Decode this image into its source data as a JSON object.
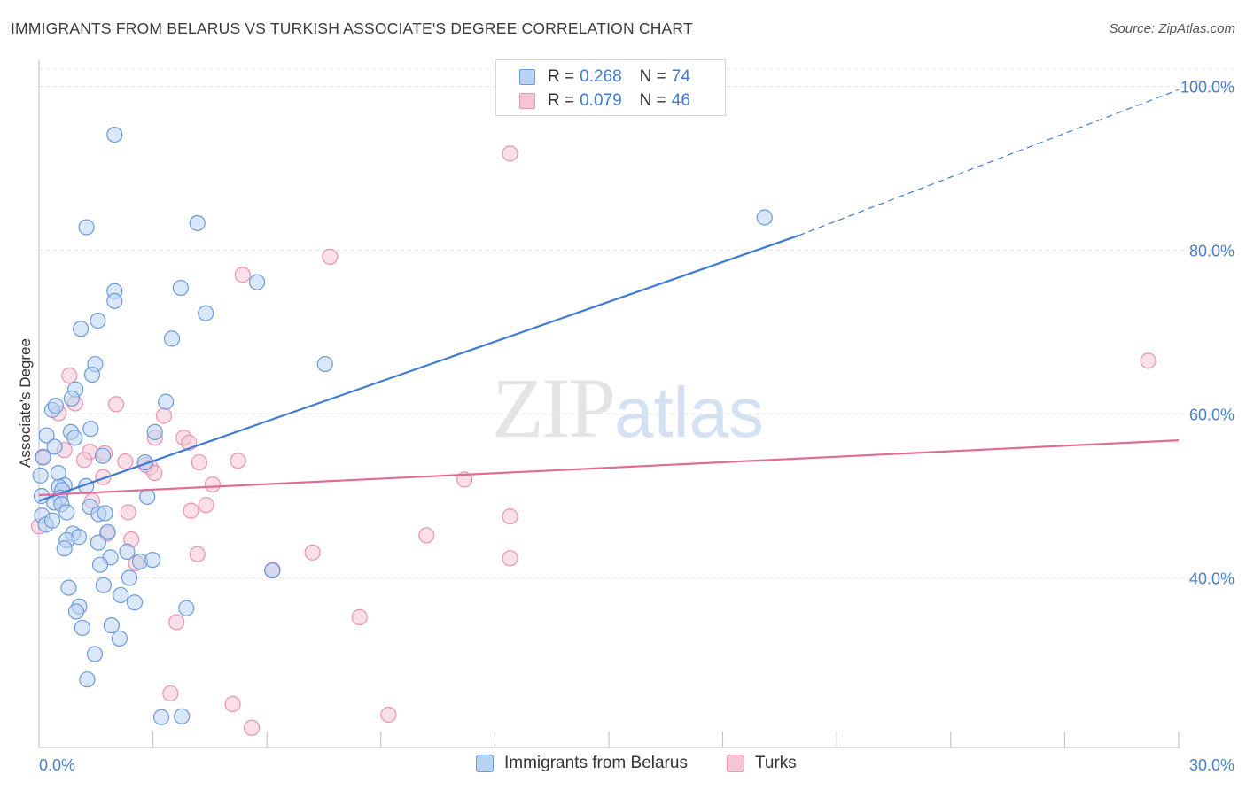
{
  "title": "IMMIGRANTS FROM BELARUS VS TURKISH ASSOCIATE'S DEGREE CORRELATION CHART",
  "source": "Source: ZipAtlas.com",
  "watermark": {
    "zip": "ZIP",
    "atlas": "atlas"
  },
  "colors": {
    "blue": "#3e7bd3",
    "blue_fill": "#b9d3f3",
    "pink": "#e06c96",
    "pink_fill": "#f6c5d5",
    "grid": "#e6e6e6"
  },
  "legend": {
    "rows": [
      {
        "r_label": "R =",
        "r_value": "0.268",
        "n_label": "N =",
        "n_value": "74"
      },
      {
        "r_label": "R =",
        "r_value": "0.079",
        "n_label": "N =",
        "n_value": "46"
      }
    ],
    "bottom": [
      "Immigrants from Belarus",
      "Turks"
    ]
  },
  "chart_data": {
    "type": "scatter",
    "title": "IMMIGRANTS FROM BELARUS VS TURKISH ASSOCIATE'S DEGREE CORRELATION CHART",
    "xlabel": "",
    "ylabel": "Associate's Degree",
    "xlim": [
      0,
      30
    ],
    "ylim": [
      20,
      102
    ],
    "x_tick_labels": [
      "0.0%",
      "30.0%"
    ],
    "y_ticks": [
      40,
      60,
      80,
      100
    ],
    "y_tick_labels": [
      "40.0%",
      "60.0%",
      "80.0%",
      "100.0%"
    ],
    "grid": true,
    "series": [
      {
        "name": "Immigrants from Belarus",
        "color": "#3e7bd3",
        "R": 0.268,
        "N": 74,
        "trend": {
          "x0": 0.0,
          "y0": 49.4,
          "x1": 20.0,
          "y1": 81.8,
          "dashed_to_x": 30.0,
          "dashed_to_y": 99.6
        },
        "points": [
          [
            1.99,
            94.1
          ],
          [
            1.25,
            82.8
          ],
          [
            4.17,
            83.3
          ],
          [
            19.1,
            84.0
          ],
          [
            1.99,
            75.0
          ],
          [
            1.99,
            73.8
          ],
          [
            3.73,
            75.4
          ],
          [
            5.74,
            76.1
          ],
          [
            1.55,
            71.4
          ],
          [
            1.1,
            70.4
          ],
          [
            4.39,
            72.3
          ],
          [
            3.5,
            69.2
          ],
          [
            1.48,
            66.1
          ],
          [
            1.4,
            64.8
          ],
          [
            7.53,
            66.1
          ],
          [
            0.96,
            63.0
          ],
          [
            0.86,
            61.9
          ],
          [
            0.35,
            60.5
          ],
          [
            0.44,
            61.0
          ],
          [
            3.34,
            61.5
          ],
          [
            1.36,
            58.2
          ],
          [
            0.84,
            57.8
          ],
          [
            0.94,
            57.1
          ],
          [
            3.05,
            57.8
          ],
          [
            0.2,
            57.4
          ],
          [
            0.41,
            56.0
          ],
          [
            1.68,
            54.9
          ],
          [
            0.11,
            54.7
          ],
          [
            2.79,
            54.1
          ],
          [
            0.51,
            52.8
          ],
          [
            0.04,
            52.5
          ],
          [
            0.67,
            51.3
          ],
          [
            0.53,
            51.1
          ],
          [
            1.24,
            51.2
          ],
          [
            0.61,
            50.7
          ],
          [
            0.56,
            49.8
          ],
          [
            2.85,
            49.9
          ],
          [
            0.07,
            50.0
          ],
          [
            0.4,
            49.2
          ],
          [
            0.59,
            49.0
          ],
          [
            1.34,
            48.7
          ],
          [
            1.57,
            47.8
          ],
          [
            1.74,
            47.9
          ],
          [
            0.73,
            48.0
          ],
          [
            0.08,
            47.6
          ],
          [
            1.81,
            45.6
          ],
          [
            0.89,
            45.4
          ],
          [
            1.05,
            45.0
          ],
          [
            0.73,
            44.6
          ],
          [
            1.56,
            44.3
          ],
          [
            0.67,
            43.6
          ],
          [
            2.32,
            43.2
          ],
          [
            1.88,
            42.5
          ],
          [
            2.66,
            42.0
          ],
          [
            1.61,
            41.6
          ],
          [
            2.99,
            42.2
          ],
          [
            2.38,
            40.0
          ],
          [
            6.14,
            40.9
          ],
          [
            0.78,
            38.8
          ],
          [
            1.7,
            39.1
          ],
          [
            2.15,
            37.9
          ],
          [
            2.52,
            37.0
          ],
          [
            1.06,
            36.5
          ],
          [
            0.98,
            35.9
          ],
          [
            3.88,
            36.3
          ],
          [
            1.14,
            33.9
          ],
          [
            1.91,
            34.2
          ],
          [
            2.12,
            32.6
          ],
          [
            1.47,
            30.7
          ],
          [
            1.27,
            27.6
          ],
          [
            3.22,
            23.0
          ],
          [
            3.76,
            23.1
          ],
          [
            0.18,
            46.5
          ],
          [
            0.35,
            47.0
          ]
        ]
      },
      {
        "name": "Turks",
        "color": "#e06c96",
        "R": 0.079,
        "N": 46,
        "trend": {
          "x0": 0.0,
          "y0": 50.1,
          "x1": 30.0,
          "y1": 56.8
        },
        "points": [
          [
            12.4,
            91.8
          ],
          [
            7.66,
            79.2
          ],
          [
            5.36,
            77.0
          ],
          [
            29.2,
            66.5
          ],
          [
            0.8,
            64.7
          ],
          [
            0.95,
            61.3
          ],
          [
            2.03,
            61.2
          ],
          [
            0.52,
            60.1
          ],
          [
            3.29,
            59.8
          ],
          [
            3.05,
            57.1
          ],
          [
            3.81,
            57.1
          ],
          [
            3.95,
            56.5
          ],
          [
            0.67,
            55.6
          ],
          [
            1.34,
            55.4
          ],
          [
            1.73,
            55.2
          ],
          [
            0.1,
            54.8
          ],
          [
            1.19,
            54.4
          ],
          [
            5.24,
            54.3
          ],
          [
            2.27,
            54.2
          ],
          [
            4.22,
            54.1
          ],
          [
            2.93,
            53.5
          ],
          [
            2.81,
            53.8
          ],
          [
            3.04,
            52.8
          ],
          [
            1.69,
            52.3
          ],
          [
            11.2,
            52.0
          ],
          [
            4.57,
            51.4
          ],
          [
            1.4,
            49.4
          ],
          [
            4.4,
            48.9
          ],
          [
            2.35,
            48.0
          ],
          [
            12.4,
            47.5
          ],
          [
            1.8,
            45.4
          ],
          [
            10.2,
            45.2
          ],
          [
            0.0,
            46.3
          ],
          [
            2.43,
            44.7
          ],
          [
            7.2,
            43.1
          ],
          [
            4.17,
            42.9
          ],
          [
            12.4,
            42.4
          ],
          [
            2.56,
            41.8
          ],
          [
            6.15,
            41.0
          ],
          [
            3.62,
            34.6
          ],
          [
            8.44,
            35.2
          ],
          [
            3.46,
            25.9
          ],
          [
            5.1,
            24.6
          ],
          [
            9.2,
            23.3
          ],
          [
            5.6,
            21.7
          ],
          [
            4.0,
            48.2
          ]
        ]
      }
    ]
  }
}
